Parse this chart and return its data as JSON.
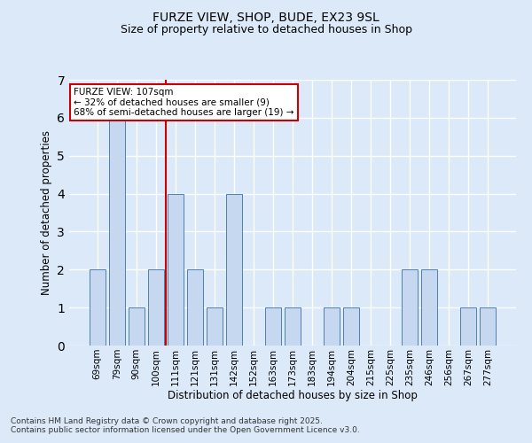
{
  "title1": "FURZE VIEW, SHOP, BUDE, EX23 9SL",
  "title2": "Size of property relative to detached houses in Shop",
  "xlabel": "Distribution of detached houses by size in Shop",
  "ylabel": "Number of detached properties",
  "categories": [
    "69sqm",
    "79sqm",
    "90sqm",
    "100sqm",
    "111sqm",
    "121sqm",
    "131sqm",
    "142sqm",
    "152sqm",
    "163sqm",
    "173sqm",
    "183sqm",
    "194sqm",
    "204sqm",
    "215sqm",
    "225sqm",
    "235sqm",
    "246sqm",
    "256sqm",
    "267sqm",
    "277sqm"
  ],
  "values": [
    2,
    6,
    1,
    2,
    4,
    2,
    1,
    4,
    0,
    1,
    1,
    0,
    1,
    1,
    0,
    0,
    2,
    2,
    0,
    1,
    1
  ],
  "bar_color": "#c5d8f0",
  "bar_edge_color": "#5080b0",
  "background_color": "#dce9f8",
  "grid_color": "#ffffff",
  "redline_index": 4,
  "redline_color": "#cc0000",
  "annotation_text": "FURZE VIEW: 107sqm\n← 32% of detached houses are smaller (9)\n68% of semi-detached houses are larger (19) →",
  "annotation_box_color": "#ffffff",
  "annotation_box_edge_color": "#cc0000",
  "ylim": [
    0,
    7
  ],
  "yticks": [
    0,
    1,
    2,
    3,
    4,
    5,
    6,
    7
  ],
  "footnote": "Contains HM Land Registry data © Crown copyright and database right 2025.\nContains public sector information licensed under the Open Government Licence v3.0."
}
